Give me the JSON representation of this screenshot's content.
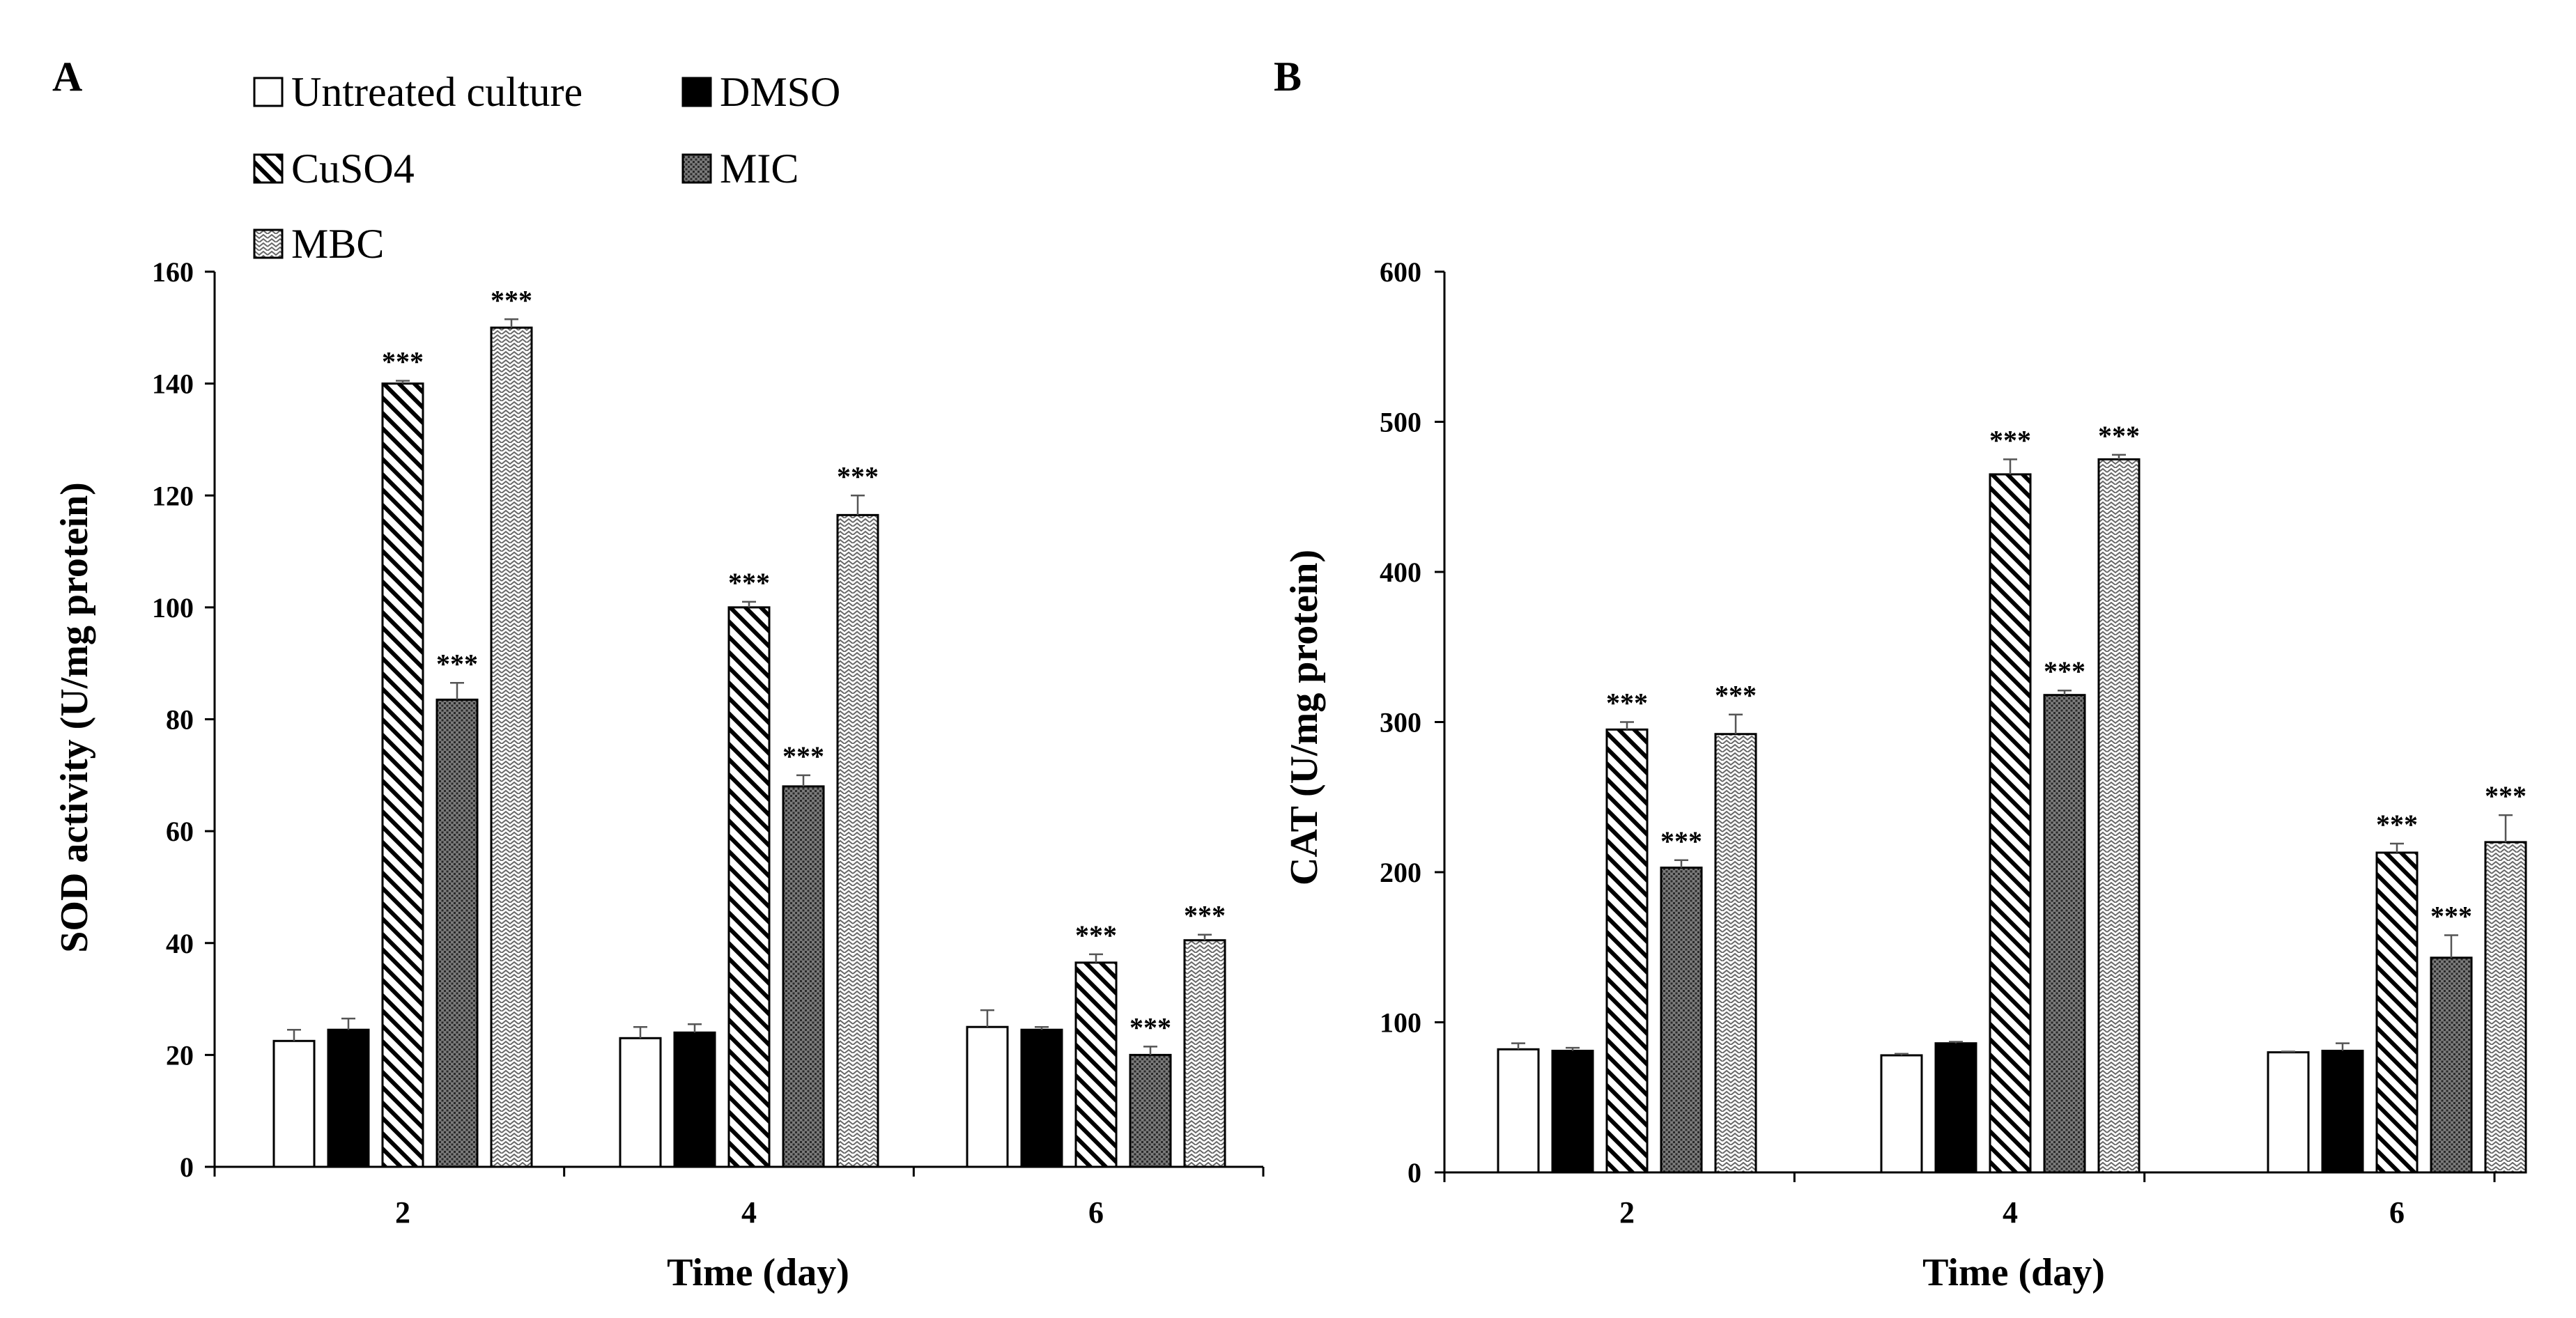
{
  "legend": [
    {
      "name": "Untreated culture",
      "pattern": "white"
    },
    {
      "name": "DMSO",
      "pattern": "black"
    },
    {
      "name": "CuSO4",
      "pattern": "diag"
    },
    {
      "name": "MIC",
      "pattern": "dots"
    },
    {
      "name": "MBC",
      "pattern": "wave"
    }
  ],
  "chart_data": [
    {
      "panel": "A",
      "type": "bar",
      "xlabel": "Time (day)",
      "ylabel": "SOD activity (U/mg protein)",
      "categories": [
        "2",
        "4",
        "6"
      ],
      "ylim": [
        0,
        160
      ],
      "yticks": [
        0,
        20,
        40,
        60,
        80,
        100,
        120,
        140,
        160
      ],
      "series": [
        {
          "name": "Untreated culture",
          "values": [
            22.5,
            23,
            25
          ],
          "errors": [
            2,
            2,
            3
          ],
          "significance": [
            "",
            "",
            ""
          ]
        },
        {
          "name": "DMSO",
          "values": [
            24.5,
            24,
            24.5
          ],
          "errors": [
            2,
            1.5,
            0.5
          ],
          "significance": [
            "",
            "",
            ""
          ]
        },
        {
          "name": "CuSO4",
          "values": [
            140,
            100,
            36.5
          ],
          "errors": [
            0.5,
            1,
            1.5
          ],
          "significance": [
            "***",
            "***",
            "***"
          ]
        },
        {
          "name": "MIC",
          "values": [
            83.5,
            68,
            20
          ],
          "errors": [
            3,
            2,
            1.5
          ],
          "significance": [
            "***",
            "***",
            "***"
          ]
        },
        {
          "name": "MBC",
          "values": [
            150,
            116.5,
            40.5
          ],
          "errors": [
            1.5,
            3.5,
            1
          ],
          "significance": [
            "***",
            "***",
            "***"
          ]
        }
      ]
    },
    {
      "panel": "B",
      "type": "bar",
      "xlabel": "Time (day)",
      "ylabel": "CAT (U/mg protein)",
      "categories": [
        "2",
        "4",
        "6"
      ],
      "ylim": [
        0,
        600
      ],
      "yticks": [
        0,
        100,
        200,
        300,
        400,
        500,
        600
      ],
      "series": [
        {
          "name": "Untreated culture",
          "values": [
            82,
            78,
            80
          ],
          "errors": [
            4,
            1,
            0.5
          ],
          "significance": [
            "",
            "",
            ""
          ]
        },
        {
          "name": "DMSO",
          "values": [
            81,
            86,
            81
          ],
          "errors": [
            2,
            1,
            5
          ],
          "significance": [
            "",
            "",
            ""
          ]
        },
        {
          "name": "CuSO4",
          "values": [
            295,
            465,
            213
          ],
          "errors": [
            5,
            10,
            6
          ],
          "significance": [
            "***",
            "***",
            "***"
          ]
        },
        {
          "name": "MIC",
          "values": [
            203,
            318,
            143
          ],
          "errors": [
            5,
            3,
            15
          ],
          "significance": [
            "***",
            "***",
            "***"
          ]
        },
        {
          "name": "MBC",
          "values": [
            292,
            475,
            220
          ],
          "errors": [
            13,
            3,
            18
          ],
          "significance": [
            "***",
            "***",
            "***"
          ]
        }
      ]
    }
  ]
}
